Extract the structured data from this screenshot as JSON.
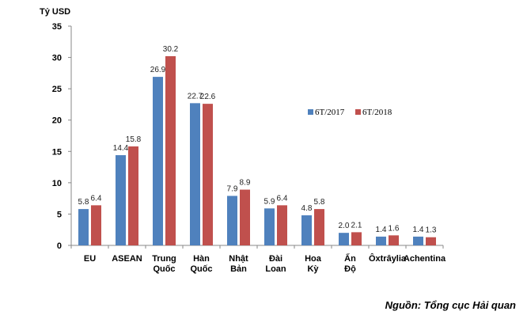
{
  "chart_data": {
    "type": "bar",
    "ylabel": "Tỷ USD",
    "ylim": [
      0,
      35
    ],
    "yticks": [
      0,
      5,
      10,
      15,
      20,
      25,
      30,
      35
    ],
    "grid": false,
    "legend_placement": "right",
    "categories": [
      [
        "EU"
      ],
      [
        "ASEAN"
      ],
      [
        "Trung",
        "Quốc"
      ],
      [
        "Hàn",
        "Quốc"
      ],
      [
        "Nhật",
        "Bản"
      ],
      [
        "Đài",
        "Loan"
      ],
      [
        "Hoa",
        "Kỳ"
      ],
      [
        "Ấn",
        "Độ"
      ],
      [
        "Ôxtrâylia"
      ],
      [
        "Achentina"
      ]
    ],
    "series": [
      {
        "name": "6T/2017",
        "color": "#4f81bd",
        "values": [
          5.8,
          14.4,
          26.9,
          22.7,
          7.9,
          5.9,
          4.8,
          2.0,
          1.4,
          1.4
        ],
        "labels": [
          "5.8",
          "14.4",
          "26.9",
          "22.7",
          "7.9",
          "5.9",
          "4.8",
          "2.0",
          "1.4",
          "1.4"
        ]
      },
      {
        "name": "6T/2018",
        "color": "#c0504d",
        "values": [
          6.4,
          15.8,
          30.2,
          22.6,
          8.9,
          6.4,
          5.8,
          2.1,
          1.6,
          1.3
        ],
        "labels": [
          "6.4",
          "15.8",
          "30.2",
          "22.6",
          "8.9",
          "6.4",
          "5.8",
          "2.1",
          "1.6",
          "1.3"
        ]
      }
    ]
  },
  "source": "Nguồn: Tổng cục Hải quan"
}
